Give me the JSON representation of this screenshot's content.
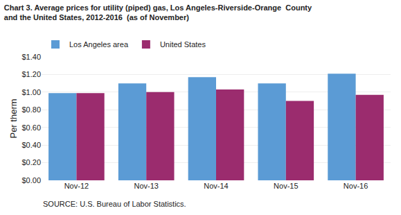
{
  "chart_data": {
    "type": "bar",
    "title": "Chart 3. Average prices for utility (piped) gas, Los Angeles-Riverside-Orange  County",
    "subtitle": "and the United States, 2012-2016  (as of November)",
    "ylabel": "Per therm",
    "annotations": [
      "SOURCE: U.S. Bureau of Labor Statistics."
    ],
    "categories": [
      "Nov-12",
      "Nov-13",
      "Nov-14",
      "Nov-15",
      "Nov-16"
    ],
    "series": [
      {
        "name": "Los Angeles area",
        "color": "#5B9BD5",
        "values": [
          0.99,
          1.1,
          1.17,
          1.1,
          1.21
        ]
      },
      {
        "name": "United States",
        "color": "#9B2C6E",
        "values": [
          0.99,
          1.0,
          1.03,
          0.9,
          0.97
        ]
      }
    ],
    "ylim": [
      0,
      1.4
    ],
    "yticks": [
      {
        "value": 0.0,
        "label": "$0.00"
      },
      {
        "value": 0.2,
        "label": "$0.20"
      },
      {
        "value": 0.4,
        "label": "$0.40"
      },
      {
        "value": 0.6,
        "label": "$0.60"
      },
      {
        "value": 0.8,
        "label": "$0.80"
      },
      {
        "value": 1.0,
        "label": "$1.00"
      },
      {
        "value": 1.2,
        "label": "$1.20"
      },
      {
        "value": 1.4,
        "label": "$1.40"
      }
    ],
    "grid": true,
    "legend": "upper left"
  }
}
